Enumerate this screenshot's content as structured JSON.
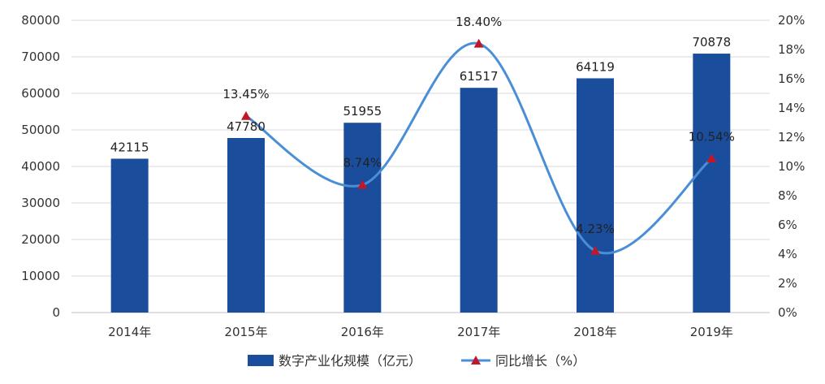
{
  "chart_data": {
    "type": "bar",
    "categories": [
      "2014年",
      "2015年",
      "2016年",
      "2017年",
      "2018年",
      "2019年"
    ],
    "series": [
      {
        "name": "数字产业化规模（亿元）",
        "type": "bar",
        "axis": "left",
        "values": [
          42115,
          47780,
          51955,
          61517,
          64119,
          70878
        ],
        "labels": [
          "42115",
          "47780",
          "51955",
          "61517",
          "64119",
          "70878"
        ],
        "color": "#1a4e9c"
      },
      {
        "name": "同比增长（%）",
        "type": "line",
        "axis": "right",
        "values": [
          null,
          13.45,
          8.74,
          18.4,
          4.23,
          10.54
        ],
        "labels": [
          "",
          "13.45%",
          "8.74%",
          "18.40%",
          "4.23%",
          "10.54%"
        ],
        "color": "#4a8fd6",
        "marker_color": "#c0182a",
        "smooth": true
      }
    ],
    "y_left": {
      "lim": [
        0,
        80000
      ],
      "ticks": [
        0,
        10000,
        20000,
        30000,
        40000,
        50000,
        60000,
        70000,
        80000
      ],
      "tick_labels": [
        "0",
        "10000",
        "20000",
        "30000",
        "40000",
        "50000",
        "60000",
        "70000",
        "80000"
      ]
    },
    "y_right": {
      "lim": [
        0,
        20
      ],
      "ticks": [
        0,
        2,
        4,
        6,
        8,
        10,
        12,
        14,
        16,
        18,
        20
      ],
      "tick_labels": [
        "0%",
        "2%",
        "4%",
        "6%",
        "8%",
        "10%",
        "12%",
        "14%",
        "16%",
        "18%",
        "20%"
      ]
    },
    "grid": true,
    "legend_position": "bottom",
    "title": "",
    "xlabel": "",
    "ylabel": ""
  }
}
